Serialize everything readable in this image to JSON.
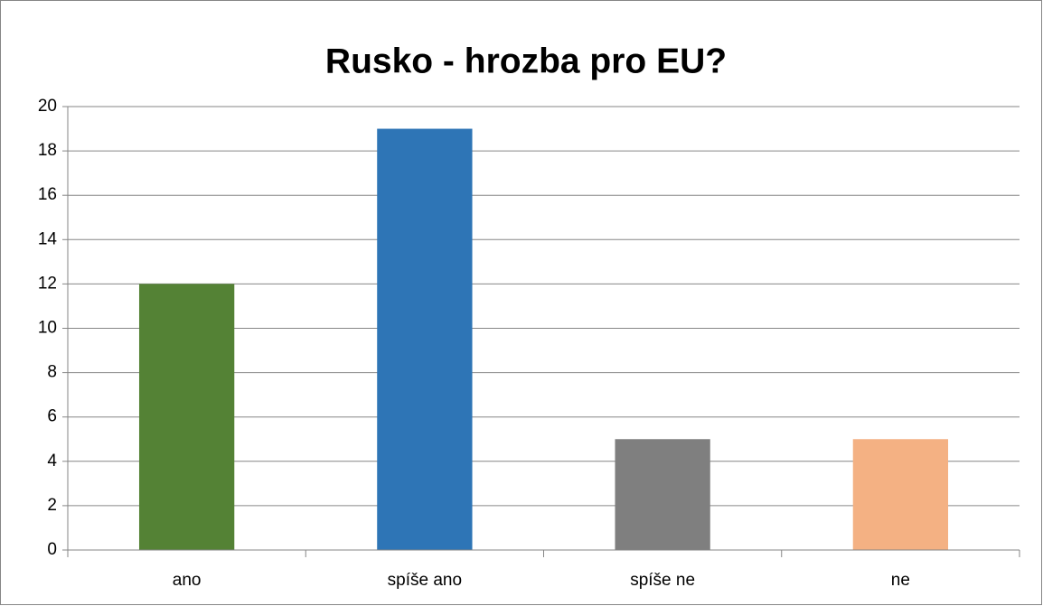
{
  "chart_data": {
    "type": "bar",
    "title": "Rusko - hrozba pro EU?",
    "categories": [
      "ano",
      "spíše ano",
      "spíše ne",
      "ne"
    ],
    "values": [
      12,
      19,
      5,
      5
    ],
    "colors": [
      "#548235",
      "#2e75b6",
      "#7f7f7f",
      "#f4b183"
    ],
    "ylim": [
      0,
      20
    ],
    "yticks": [
      0,
      2,
      4,
      6,
      8,
      10,
      12,
      14,
      16,
      18,
      20
    ],
    "grid": true
  }
}
